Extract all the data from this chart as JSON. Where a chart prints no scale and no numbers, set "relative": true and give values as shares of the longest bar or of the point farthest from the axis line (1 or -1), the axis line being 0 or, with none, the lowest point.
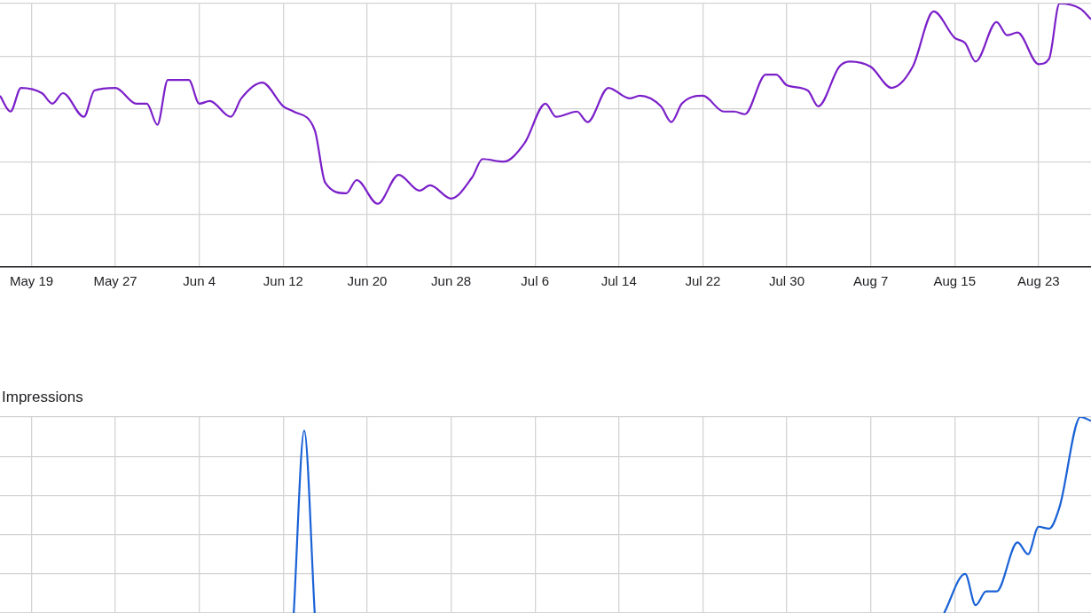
{
  "chart_data": [
    {
      "type": "line",
      "relative": true,
      "grid": true,
      "marker": "none",
      "xlim": [
        "--05-16",
        "--08-28"
      ],
      "xticks": [
        {
          "value": "--05-19",
          "label": "May 19"
        },
        {
          "value": "--05-27",
          "label": "May 27"
        },
        {
          "value": "--06-04",
          "label": "Jun 4"
        },
        {
          "value": "--06-12",
          "label": "Jun 12"
        },
        {
          "value": "--06-20",
          "label": "Jun 20"
        },
        {
          "value": "--06-28",
          "label": "Jun 28"
        },
        {
          "value": "--07-06",
          "label": "Jul 6"
        },
        {
          "value": "--07-14",
          "label": "Jul 14"
        },
        {
          "value": "--07-22",
          "label": "Jul 22"
        },
        {
          "value": "--07-30",
          "label": "Jul 30"
        },
        {
          "value": "--08-07",
          "label": "Aug 7"
        },
        {
          "value": "--08-15",
          "label": "Aug 15"
        },
        {
          "value": "--08-23",
          "label": "Aug 23"
        }
      ],
      "tick_labels": "x",
      "x": [
        "--05-16",
        "--05-17",
        "--05-18",
        "--05-20",
        "--05-21",
        "--05-22",
        "--05-24",
        "--05-25",
        "--05-27",
        "--05-29",
        "--05-30",
        "--05-31",
        "--06-01",
        "--06-03",
        "--06-04",
        "--06-05",
        "--06-07",
        "--06-08",
        "--06-10",
        "--06-12",
        "--06-13",
        "--06-15",
        "--06-16",
        "--06-18",
        "--06-19",
        "--06-21",
        "--06-23",
        "--06-25",
        "--06-26",
        "--06-28",
        "--06-30",
        "--07-01",
        "--07-03",
        "--07-05",
        "--07-07",
        "--07-08",
        "--07-10",
        "--07-11",
        "--07-13",
        "--07-15",
        "--07-16",
        "--07-18",
        "--07-19",
        "--07-20",
        "--07-22",
        "--07-24",
        "--07-25",
        "--07-26",
        "--07-28",
        "--07-29",
        "--07-30",
        "--08-01",
        "--08-02",
        "--08-04",
        "--08-05",
        "--08-07",
        "--08-09",
        "--08-11",
        "--08-13",
        "--08-15",
        "--08-16",
        "--08-17",
        "--08-19",
        "--08-20",
        "--08-21",
        "--08-23",
        "--08-24",
        "--08-25",
        "--08-27",
        "--08-28"
      ],
      "series": [
        {
          "color": "#7b1fc9",
          "values": [
            0.65,
            0.59,
            0.68,
            0.66,
            0.62,
            0.66,
            0.57,
            0.67,
            0.68,
            0.62,
            0.62,
            0.54,
            0.71,
            0.71,
            0.62,
            0.63,
            0.57,
            0.64,
            0.7,
            0.61,
            0.59,
            0.52,
            0.32,
            0.28,
            0.33,
            0.24,
            0.35,
            0.29,
            0.31,
            0.26,
            0.34,
            0.41,
            0.4,
            0.47,
            0.62,
            0.57,
            0.59,
            0.55,
            0.68,
            0.64,
            0.65,
            0.61,
            0.55,
            0.62,
            0.65,
            0.59,
            0.59,
            0.58,
            0.73,
            0.73,
            0.69,
            0.67,
            0.61,
            0.76,
            0.78,
            0.76,
            0.68,
            0.76,
            0.97,
            0.87,
            0.85,
            0.78,
            0.93,
            0.88,
            0.89,
            0.77,
            0.79,
            1,
            0.98,
            0.94
          ]
        }
      ]
    },
    {
      "type": "line",
      "relative": true,
      "grid": true,
      "marker": "none",
      "title": "Impressions",
      "xlim": [
        "--05-16",
        "--08-28"
      ],
      "xticks": [
        {
          "value": "--05-19",
          "label": null
        },
        {
          "value": "--05-27",
          "label": null
        },
        {
          "value": "--06-04",
          "label": null
        },
        {
          "value": "--06-12",
          "label": null
        },
        {
          "value": "--06-20",
          "label": null
        },
        {
          "value": "--06-28",
          "label": null
        },
        {
          "value": "--07-06",
          "label": null
        },
        {
          "value": "--07-14",
          "label": null
        },
        {
          "value": "--07-22",
          "label": null
        },
        {
          "value": "--07-30",
          "label": null
        },
        {
          "value": "--08-07",
          "label": null
        },
        {
          "value": "--08-15",
          "label": null
        },
        {
          "value": "--08-23",
          "label": null
        }
      ],
      "tick_labels": false,
      "x": [
        "--06-13",
        "--06-14",
        "--06-15",
        "--07-15",
        "--08-14",
        "--08-16",
        "--08-17",
        "--08-18",
        "--08-19",
        "--08-21",
        "--08-22",
        "--08-23",
        "--08-24",
        "--08-25",
        "--08-27",
        "--08-28"
      ],
      "series": [
        {
          "color": "#1a62d6",
          "values": [
            0,
            0.93,
            0,
            null,
            0,
            0.2,
            0.04,
            0.11,
            0.11,
            0.36,
            0.3,
            0.44,
            0.43,
            0.54,
            1,
            0.98
          ]
        }
      ]
    }
  ]
}
